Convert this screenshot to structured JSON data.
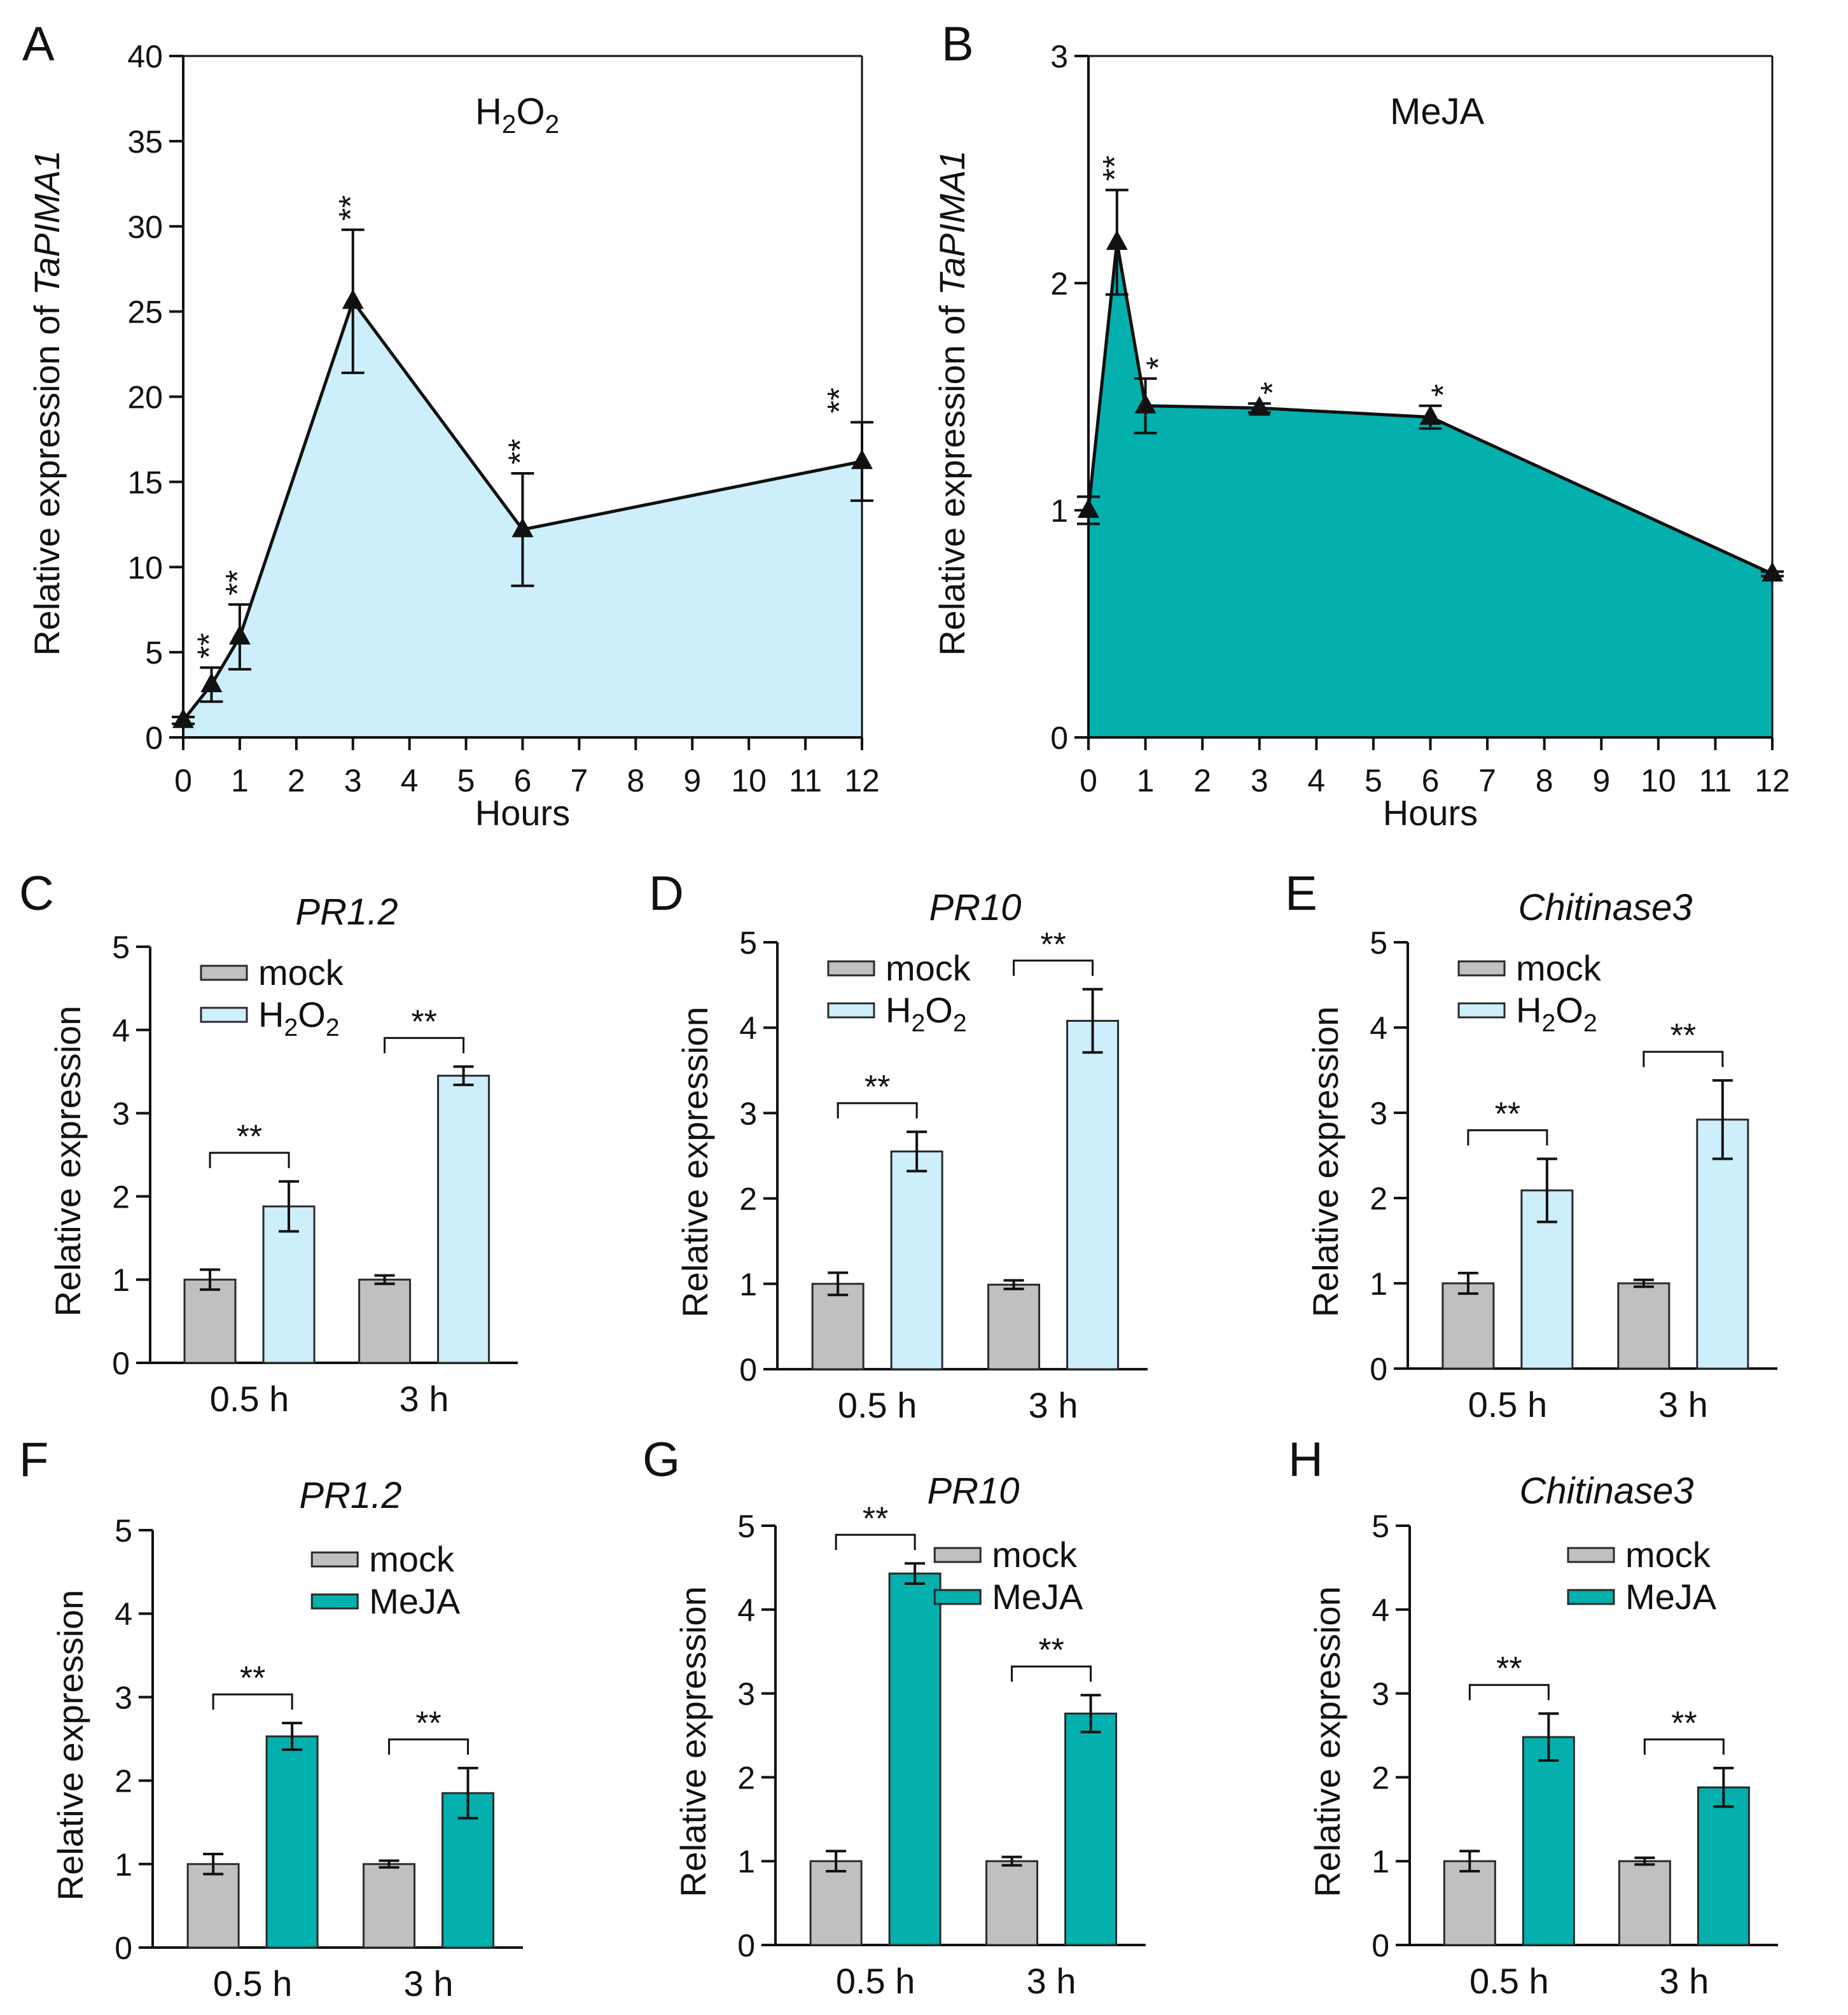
{
  "colors": {
    "h2o2": "#cdeffb",
    "meja": "#03b0ad",
    "mock": "#c0c0c0",
    "line": "#111111"
  },
  "chart_data": [
    {
      "id": "A",
      "panel_label": "A",
      "type": "area",
      "title": "H2O2",
      "xlabel": "Hours",
      "ylabel": "Relative expression of TaPIMA1",
      "ylabel_plain": "Relative expression of ",
      "ylabel_italic": "TaPIMA1",
      "xlim": [
        0,
        12
      ],
      "ylim": [
        0,
        40
      ],
      "xticks": [
        "0",
        "1",
        "2",
        "3",
        "4",
        "5",
        "6",
        "7",
        "8",
        "9",
        "10",
        "11",
        "12"
      ],
      "yticks": [
        "0",
        "5",
        "10",
        "15",
        "20",
        "25",
        "30",
        "35",
        "40"
      ],
      "fill": "h2o2",
      "x": [
        0,
        0.5,
        1,
        3,
        6,
        12
      ],
      "y": [
        1.0,
        3.1,
        5.9,
        25.6,
        12.2,
        16.2
      ],
      "err": [
        0.2,
        1.0,
        1.9,
        4.2,
        3.3,
        2.3
      ],
      "sig": [
        "",
        "**",
        "**",
        "**",
        "**",
        "**"
      ]
    },
    {
      "id": "B",
      "panel_label": "B",
      "type": "area",
      "title": "MeJA",
      "xlabel": "Hours",
      "ylabel": "Relative expression of TaPIMA1",
      "ylabel_plain": "Relative expression of ",
      "ylabel_italic": "TaPIMA1",
      "xlim": [
        0,
        12
      ],
      "ylim": [
        0,
        3
      ],
      "xticks": [
        "0",
        "1",
        "2",
        "3",
        "4",
        "5",
        "6",
        "7",
        "8",
        "9",
        "10",
        "11",
        "12"
      ],
      "yticks": [
        "0",
        "1",
        "2",
        "3"
      ],
      "fill": "meja",
      "x": [
        0,
        0.5,
        1,
        3,
        6,
        12
      ],
      "y": [
        1.0,
        2.18,
        1.46,
        1.45,
        1.41,
        0.72
      ],
      "err": [
        0.06,
        0.23,
        0.12,
        0.02,
        0.05,
        0.01
      ],
      "sig": [
        "",
        "**",
        "*",
        "*",
        "*",
        ""
      ]
    },
    {
      "id": "C",
      "panel_label": "C",
      "type": "bar",
      "title": "PR1.2",
      "ylabel": "Relative expression",
      "ylim": [
        0,
        5
      ],
      "yticks": [
        "0",
        "1",
        "2",
        "3",
        "4",
        "5"
      ],
      "categories": [
        "0.5 h",
        "3 h"
      ],
      "series": [
        {
          "name": "mock",
          "color": "mock",
          "values": [
            1.0,
            1.0
          ],
          "err": [
            0.12,
            0.05
          ]
        },
        {
          "name": "H2O2",
          "color": "h2o2",
          "values": [
            1.88,
            3.45
          ],
          "err": [
            0.3,
            0.11
          ]
        }
      ],
      "sig": [
        "**",
        "**"
      ]
    },
    {
      "id": "D",
      "panel_label": "D",
      "type": "bar",
      "title": "PR10",
      "ylabel": "Relative expression",
      "ylim": [
        0,
        5
      ],
      "yticks": [
        "0",
        "1",
        "2",
        "3",
        "4",
        "5"
      ],
      "categories": [
        "0.5 h",
        "3 h"
      ],
      "series": [
        {
          "name": "mock",
          "color": "mock",
          "values": [
            1.0,
            0.99
          ],
          "err": [
            0.13,
            0.05
          ]
        },
        {
          "name": "H2O2",
          "color": "h2o2",
          "values": [
            2.55,
            4.08
          ],
          "err": [
            0.23,
            0.37
          ]
        }
      ],
      "sig": [
        "**",
        "**"
      ]
    },
    {
      "id": "E",
      "panel_label": "E",
      "type": "bar",
      "title": "Chitinase3",
      "ylabel": "Relative expression",
      "ylim": [
        0,
        5
      ],
      "yticks": [
        "0",
        "1",
        "2",
        "3",
        "4",
        "5"
      ],
      "categories": [
        "0.5 h",
        "3 h"
      ],
      "series": [
        {
          "name": "mock",
          "color": "mock",
          "values": [
            1.0,
            1.0
          ],
          "err": [
            0.12,
            0.04
          ]
        },
        {
          "name": "H2O2",
          "color": "h2o2",
          "values": [
            2.09,
            2.92
          ],
          "err": [
            0.37,
            0.46
          ]
        }
      ],
      "sig": [
        "**",
        "**"
      ]
    },
    {
      "id": "F",
      "panel_label": "F",
      "type": "bar",
      "title": "PR1.2",
      "ylabel": "Relative expression",
      "ylim": [
        0,
        5
      ],
      "yticks": [
        "0",
        "1",
        "2",
        "3",
        "4",
        "5"
      ],
      "categories": [
        "0.5 h",
        "3 h"
      ],
      "series": [
        {
          "name": "mock",
          "color": "mock",
          "values": [
            1.0,
            1.0
          ],
          "err": [
            0.12,
            0.04
          ]
        },
        {
          "name": "MeJA",
          "color": "meja",
          "values": [
            2.53,
            1.85
          ],
          "err": [
            0.16,
            0.3
          ]
        }
      ],
      "sig": [
        "**",
        "**"
      ]
    },
    {
      "id": "G",
      "panel_label": "G",
      "type": "bar",
      "title": "PR10",
      "ylabel": "Relative expression",
      "ylim": [
        0,
        5
      ],
      "yticks": [
        "0",
        "1",
        "2",
        "3",
        "4",
        "5"
      ],
      "categories": [
        "0.5 h",
        "3 h"
      ],
      "series": [
        {
          "name": "mock",
          "color": "mock",
          "values": [
            1.0,
            1.0
          ],
          "err": [
            0.12,
            0.05
          ]
        },
        {
          "name": "MeJA",
          "color": "meja",
          "values": [
            4.43,
            2.76
          ],
          "err": [
            0.12,
            0.22
          ]
        }
      ],
      "sig": [
        "**",
        "**"
      ]
    },
    {
      "id": "H",
      "panel_label": "H",
      "type": "bar",
      "title": "Chitinase3",
      "ylabel": "Relative expression",
      "ylim": [
        0,
        5
      ],
      "yticks": [
        "0",
        "1",
        "2",
        "3",
        "4",
        "5"
      ],
      "categories": [
        "0.5 h",
        "3 h"
      ],
      "series": [
        {
          "name": "mock",
          "color": "mock",
          "values": [
            1.0,
            1.0
          ],
          "err": [
            0.12,
            0.04
          ]
        },
        {
          "name": "MeJA",
          "color": "meja",
          "values": [
            2.48,
            1.88
          ],
          "err": [
            0.28,
            0.23
          ]
        }
      ],
      "sig": [
        "**",
        "**"
      ]
    }
  ]
}
